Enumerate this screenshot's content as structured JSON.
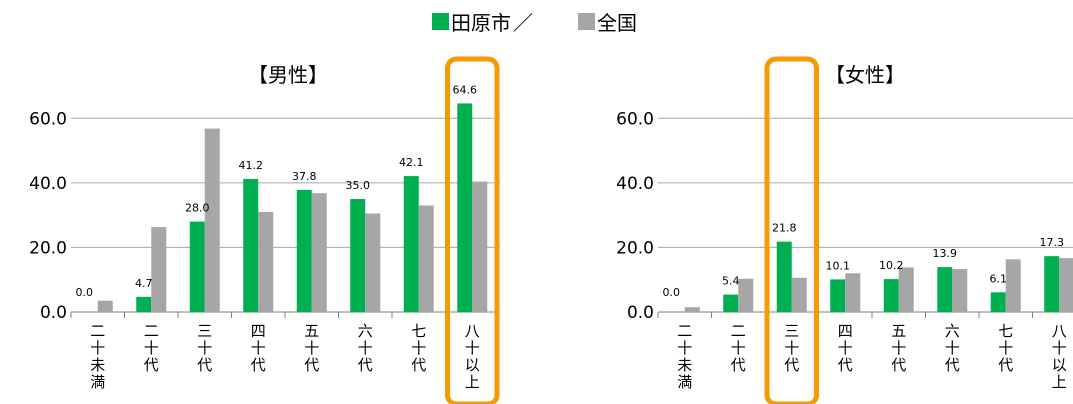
{
  "legend": {
    "series1": "田原市",
    "separator": "／",
    "series2": "全国"
  },
  "colors": {
    "city": "#00b050",
    "national": "#a6a6a6",
    "highlight": "#f59a00",
    "grid": "#a6a6a6",
    "axis": "#808080"
  },
  "chart_data": [
    {
      "type": "bar",
      "title": "【男性】",
      "categories": [
        "二十未満",
        "二十代",
        "三十代",
        "四十代",
        "五十代",
        "六十代",
        "七十代",
        "八十以上"
      ],
      "series": [
        {
          "name": "田原市",
          "values": [
            0.0,
            4.7,
            28.0,
            41.2,
            37.8,
            35.0,
            42.1,
            64.6
          ]
        },
        {
          "name": "全国",
          "values": [
            3.5,
            26.3,
            56.8,
            31.0,
            36.8,
            30.5,
            33.0,
            40.4
          ]
        }
      ],
      "data_labels": [
        "0.0",
        "4.7",
        "28.0",
        "41.2",
        "37.8",
        "35.0",
        "42.1",
        "64.6"
      ],
      "yticks": [
        "0.0",
        "20.0",
        "40.0",
        "60.0"
      ],
      "ylim": [
        0,
        70
      ],
      "grid": true,
      "highlight_category": "八十以上"
    },
    {
      "type": "bar",
      "title": "【女性】",
      "categories": [
        "二十未満",
        "二十代",
        "三十代",
        "四十代",
        "五十代",
        "六十代",
        "七十代",
        "八十以上"
      ],
      "series": [
        {
          "name": "田原市",
          "values": [
            0.0,
            5.4,
            21.8,
            10.1,
            10.2,
            13.9,
            6.1,
            17.3
          ]
        },
        {
          "name": "全国",
          "values": [
            1.5,
            10.3,
            10.6,
            12.0,
            13.8,
            13.3,
            16.3,
            16.7
          ]
        }
      ],
      "data_labels": [
        "0.0",
        "5.4",
        "21.8",
        "10.1",
        "10.2",
        "13.9",
        "6.1",
        "17.3"
      ],
      "yticks": [
        "0.0",
        "20.0",
        "40.0",
        "60.0"
      ],
      "ylim": [
        0,
        70
      ],
      "grid": true,
      "highlight_category": "三十代"
    }
  ]
}
